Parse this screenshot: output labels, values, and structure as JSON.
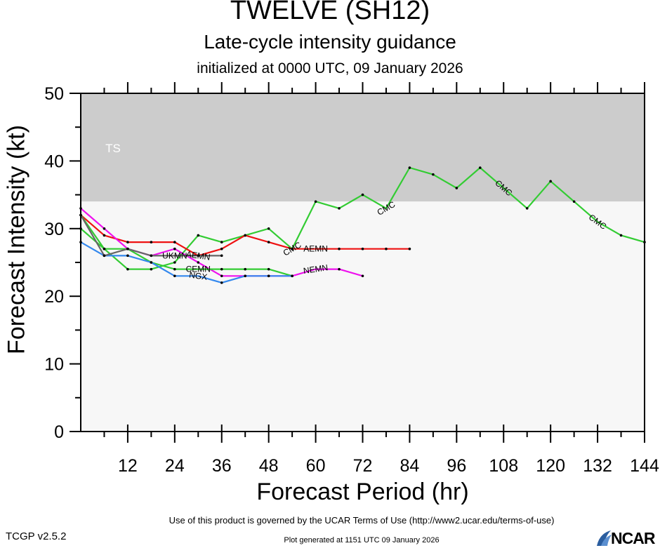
{
  "header": {
    "title": "TWELVE (SH12)",
    "subtitle": "Late-cycle intensity guidance",
    "init": "initialized at 0000 UTC, 09 January 2026"
  },
  "footer": {
    "terms": "Use of this product is governed by the UCAR Terms of Use (http://www2.ucar.edu/terms-of-use)",
    "generated": "Plot generated at 1151 UTC   09 January 2026",
    "version": "TCGP v2.5.2",
    "logo": "NCAR"
  },
  "chart_data": {
    "type": "line",
    "xlabel": "Forecast Period (hr)",
    "ylabel": "Forecast Intensity (kt)",
    "xlim": [
      0,
      144
    ],
    "ylim": [
      0,
      50
    ],
    "xticks": [
      12,
      24,
      36,
      48,
      60,
      72,
      84,
      96,
      108,
      120,
      132,
      144
    ],
    "yticks": [
      0,
      10,
      20,
      30,
      40,
      50
    ],
    "bands": [
      {
        "label": "TS",
        "from": 34,
        "to": 50,
        "color": "#cccccc"
      },
      {
        "label": "",
        "from": 0,
        "to": 34,
        "color": "#f7f7f7"
      }
    ],
    "series": [
      {
        "name": "CMC",
        "color": "#33cc33",
        "label_x": [
          54,
          78,
          108,
          132
        ],
        "x": [
          0,
          6,
          12,
          18,
          24,
          30,
          36,
          42,
          48,
          54,
          60,
          66,
          72,
          78,
          84,
          90,
          96,
          102,
          108,
          114,
          120,
          126,
          132,
          138,
          144
        ],
        "y": [
          30,
          27,
          24,
          24,
          25,
          29,
          28,
          29,
          30,
          27,
          34,
          33,
          35,
          33,
          39,
          38,
          36,
          39,
          36,
          33,
          37,
          34,
          31,
          29,
          28
        ]
      },
      {
        "name": "AEMN",
        "color": "#ee1111",
        "label_x": [
          30,
          60
        ],
        "x": [
          0,
          6,
          12,
          18,
          24,
          30,
          36,
          42,
          48,
          54,
          60,
          66,
          72,
          78,
          84
        ],
        "y": [
          32,
          29,
          28,
          28,
          28,
          26,
          27,
          29,
          28,
          27,
          27,
          27,
          27,
          27,
          27
        ]
      },
      {
        "name": "NEMN",
        "color": "#ee11ee",
        "label_x": [
          60
        ],
        "x": [
          0,
          6,
          12,
          18,
          24,
          30,
          36,
          42,
          48,
          54,
          60,
          66,
          72
        ],
        "y": [
          33,
          30,
          27,
          26,
          27,
          25,
          23,
          23,
          23,
          23,
          24,
          24,
          23
        ]
      },
      {
        "name": "CEMN",
        "color": "#33cc33",
        "label_x": [
          30
        ],
        "x": [
          0,
          6,
          12,
          18,
          24,
          30,
          36,
          42,
          48,
          54
        ],
        "y": [
          32,
          27,
          27,
          25,
          24,
          24,
          24,
          24,
          24,
          23
        ]
      },
      {
        "name": "NGX",
        "color": "#3388ee",
        "label_x": [
          30
        ],
        "x": [
          0,
          6,
          12,
          18,
          24,
          30,
          36,
          42,
          48,
          54
        ],
        "y": [
          28,
          26,
          26,
          25,
          23,
          23,
          22,
          23,
          23,
          23
        ]
      },
      {
        "name": "UKMN",
        "color": "#666666",
        "label_x": [
          24
        ],
        "x": [
          0,
          6,
          12,
          18,
          24,
          30,
          36
        ],
        "y": [
          32,
          26,
          27,
          26,
          26,
          26,
          26
        ]
      }
    ]
  }
}
